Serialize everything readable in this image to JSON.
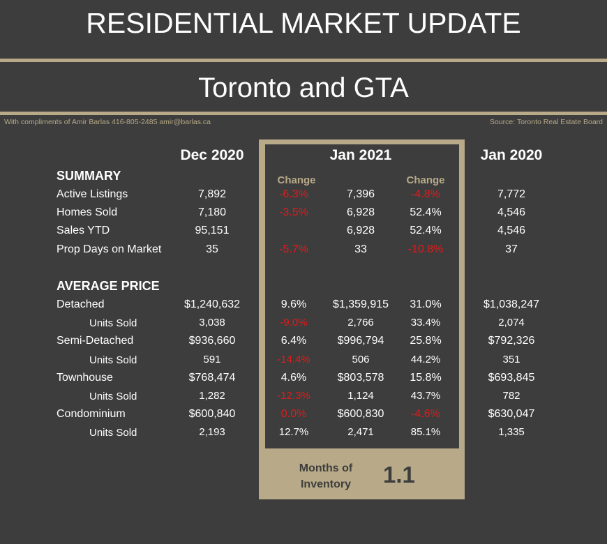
{
  "header": {
    "title": "RESIDENTIAL MARKET UPDATE",
    "subtitle": "Toronto and GTA",
    "credit": "With compliments of Amir Barlas 416-805-2485 amir@barlas.ca",
    "source": "Source: Toronto Real Estate Board"
  },
  "table": {
    "columns": [
      "Dec 2020",
      "Jan 2021",
      "Jan 2020"
    ],
    "change_label": "Change",
    "sections": [
      {
        "title": "SUMMARY",
        "rows": [
          {
            "label": "Active Listings",
            "dec": "7,892",
            "ch1": {
              "text": "-6.3%",
              "color": "#e01b1b"
            },
            "jan21": "7,396",
            "ch2": {
              "text": "-4.8%",
              "color": "#e01b1b"
            },
            "jan20": "7,772"
          },
          {
            "label": "Homes Sold",
            "dec": "7,180",
            "ch1": {
              "text": "-3.5%",
              "color": "#e01b1b"
            },
            "jan21": "6,928",
            "ch2": "52.4%",
            "jan20": "4,546"
          },
          {
            "label": "Sales YTD",
            "dec": "95,151",
            "ch1": null,
            "jan21": "6,928",
            "ch2": "52.4%",
            "jan20": "4,546"
          },
          {
            "label": "Prop Days on Market",
            "dec": "35",
            "ch1": {
              "text": "-5.7%",
              "color": "#e01b1b"
            },
            "jan21": "33",
            "ch2": {
              "text": "-10.8%",
              "color": "#e01b1b"
            },
            "jan20": "37"
          }
        ]
      },
      {
        "title": "AVERAGE PRICE",
        "rows": [
          {
            "label": "Detached",
            "dec": "$1,240,632",
            "ch1": "9.6%",
            "jan21": "$1,359,915",
            "ch2": "31.0%",
            "jan20": "$1,038,247"
          },
          {
            "label": "Units Sold",
            "sub": true,
            "dec": "3,038",
            "ch1": {
              "text": "-9.0%",
              "color": "#e01b1b"
            },
            "jan21": "2,766",
            "ch2": "33.4%",
            "jan20": "2,074"
          },
          {
            "label": "Semi-Detached",
            "dec": "$936,660",
            "ch1": "6.4%",
            "jan21": "$996,794",
            "ch2": "25.8%",
            "jan20": "$792,326"
          },
          {
            "label": "Units Sold",
            "sub": true,
            "dec": "591",
            "ch1": {
              "text": "-14.4%",
              "color": "#e01b1b"
            },
            "jan21": "506",
            "ch2": "44.2%",
            "jan20": "351"
          },
          {
            "label": "Townhouse",
            "dec": "$768,474",
            "ch1": "4.6%",
            "jan21": "$803,578",
            "ch2": "15.8%",
            "jan20": "$693,845"
          },
          {
            "label": "Units Sold",
            "sub": true,
            "dec": "1,282",
            "ch1": {
              "text": "-12.3%",
              "color": "#e01b1b"
            },
            "jan21": "1,124",
            "ch2": "43.7%",
            "jan20": "782"
          },
          {
            "label": "Condominium",
            "dec": "$600,840",
            "ch1": {
              "text": "0.0%",
              "color": "#e01b1b"
            },
            "jan21": "$600,830",
            "ch2": {
              "text": "-4.6%",
              "color": "#e01b1b"
            },
            "jan20": "$630,047"
          },
          {
            "label": "Units Sold",
            "sub": true,
            "dec": "2,193",
            "ch1": "12.7%",
            "jan21": "2,471",
            "ch2": "85.1%",
            "jan20": "1,335"
          }
        ]
      }
    ]
  },
  "inventory": {
    "label": "Months of Inventory",
    "value": "1.1"
  }
}
